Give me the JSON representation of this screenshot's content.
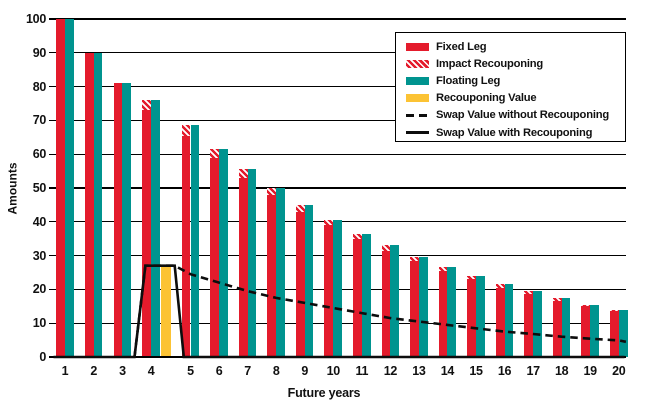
{
  "colors": {
    "fixed_leg": "#e41b2c",
    "floating_leg": "#00948f",
    "recouponing_value": "#fcc334",
    "line": "#0d0d0d"
  },
  "legend": {
    "items": [
      {
        "label": "Fixed Leg",
        "swatch": "solid-red"
      },
      {
        "label": "Impact Recouponing",
        "swatch": "hatch-red"
      },
      {
        "label": "Floating Leg",
        "swatch": "solid-teal"
      },
      {
        "label": "Recouponing Value",
        "swatch": "solid-yellow"
      },
      {
        "label": "Swap Value without Recouponing",
        "swatch": "dashed-line"
      },
      {
        "label": "Swap Value with Recouponing",
        "swatch": "solid-line"
      }
    ]
  },
  "chart_data": {
    "type": "bar",
    "title": "",
    "xlabel": "Future years",
    "ylabel": "Amounts",
    "ylim": [
      0,
      100
    ],
    "yticks": [
      0,
      10,
      20,
      30,
      40,
      50,
      60,
      70,
      80,
      90,
      100
    ],
    "grid": "horizontal-black",
    "legend_position": "top-right",
    "categories": [
      1,
      2,
      3,
      4,
      5,
      6,
      7,
      8,
      9,
      10,
      11,
      12,
      13,
      14,
      15,
      16,
      17,
      18,
      19,
      20
    ],
    "series": [
      {
        "name": "Fixed Leg",
        "type": "bar",
        "color_key": "fixed_leg",
        "values": [
          100,
          90,
          81,
          73,
          65.5,
          59,
          53,
          48,
          43,
          39,
          35,
          31.5,
          28.5,
          25.5,
          23,
          20.5,
          18.5,
          16.5,
          15,
          13.5
        ]
      },
      {
        "name": "Impact Recouponing",
        "type": "bar-stacked-on-fixed",
        "style": "red-white-hatch",
        "values": [
          0,
          0,
          0,
          3,
          3,
          2.5,
          2.5,
          2,
          2,
          1.5,
          1.5,
          1.5,
          1,
          1,
          1,
          1,
          1,
          1,
          0.5,
          0.5
        ]
      },
      {
        "name": "Floating Leg",
        "type": "bar",
        "color_key": "floating_leg",
        "values": [
          100,
          90,
          81,
          76,
          68.5,
          61.5,
          55.5,
          50,
          45,
          40.5,
          36.5,
          33,
          29.5,
          26.5,
          24,
          21.5,
          19.5,
          17.5,
          15.5,
          14
        ]
      },
      {
        "name": "Recouponing Value",
        "type": "bar-single",
        "color_key": "recouponing_value",
        "position_between_years": [
          4,
          5
        ],
        "value": 27
      },
      {
        "name": "Swap Value without Recouponing",
        "type": "line",
        "dash": true,
        "points": [
          [
            3.42,
            0
          ],
          [
            3.8,
            27
          ],
          [
            4.6,
            27
          ],
          [
            5,
            24.5
          ],
          [
            6,
            22
          ],
          [
            7,
            19.5
          ],
          [
            8,
            17.5
          ],
          [
            9,
            16
          ],
          [
            10,
            14.5
          ],
          [
            11,
            13
          ],
          [
            12,
            11.5
          ],
          [
            13,
            10.5
          ],
          [
            14,
            9.5
          ],
          [
            15,
            8.5
          ],
          [
            16,
            7.5
          ],
          [
            17,
            6.8
          ],
          [
            18,
            6
          ],
          [
            19,
            5.4
          ],
          [
            20,
            4.9
          ],
          [
            20.25,
            4.5
          ]
        ]
      },
      {
        "name": "Swap Value with Recouponing",
        "type": "line",
        "dash": false,
        "points": [
          [
            0.6,
            0
          ],
          [
            3.42,
            0
          ],
          [
            3.8,
            27
          ],
          [
            4.6,
            27
          ],
          [
            4.83,
            0
          ],
          [
            20.2,
            0
          ]
        ]
      }
    ]
  }
}
